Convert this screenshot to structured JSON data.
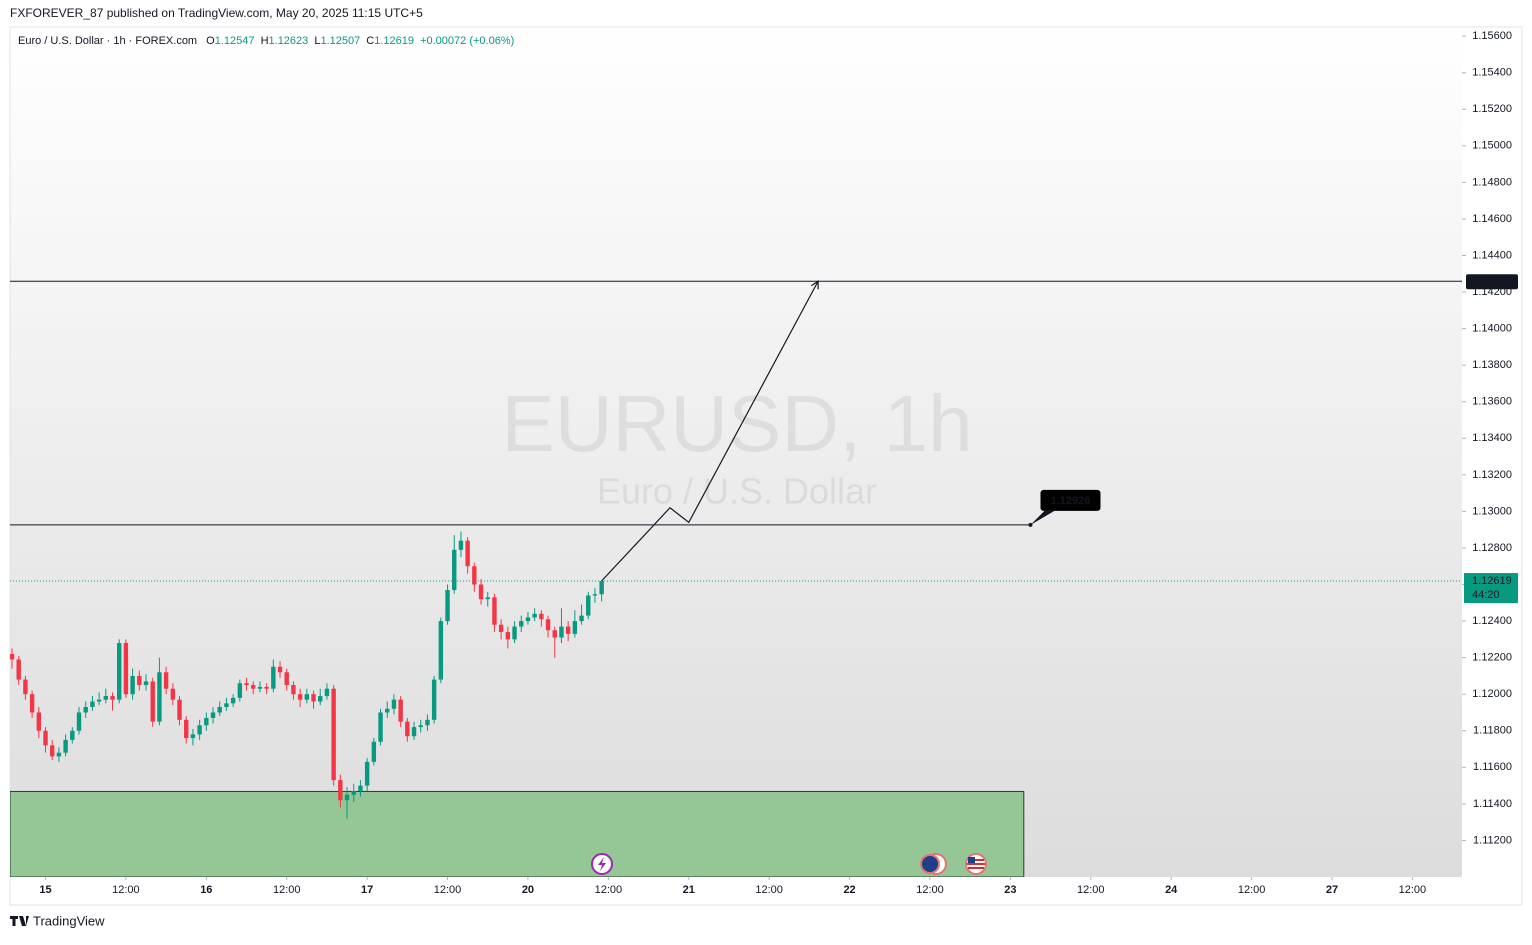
{
  "header": "FXFOREVER_87 published on TradingView.com, May 20, 2025 11:15 UTC+5",
  "footer": "TradingView",
  "chart_data": {
    "type": "candlestick",
    "title": "Euro / U.S. Dollar · 1h · FOREX.com",
    "legend": {
      "open_label": "O",
      "open": 1.12547,
      "high_label": "H",
      "high": 1.12623,
      "low_label": "L",
      "low": 1.12507,
      "close_label": "C",
      "close": 1.12619,
      "change": "+0.00072 (+0.06%)"
    },
    "watermark": "EURUSD, 1h",
    "watermark_sub": "Euro / U.S. Dollar",
    "up_color": "#089981",
    "down_color": "#f23645",
    "ohlc": [
      [
        1.1222,
        1.1225,
        1.1214,
        1.1219
      ],
      [
        1.1219,
        1.1221,
        1.1205,
        1.1208
      ],
      [
        1.1208,
        1.121,
        1.1197,
        1.12
      ],
      [
        1.12,
        1.1202,
        1.1187,
        1.119
      ],
      [
        1.119,
        1.1193,
        1.1176,
        1.118
      ],
      [
        1.118,
        1.1182,
        1.1168,
        1.1172
      ],
      [
        1.1172,
        1.1175,
        1.1164,
        1.1166
      ],
      [
        1.1166,
        1.1171,
        1.1163,
        1.1168
      ],
      [
        1.1168,
        1.1178,
        1.1166,
        1.1175
      ],
      [
        1.1175,
        1.1182,
        1.1173,
        1.118
      ],
      [
        1.118,
        1.1193,
        1.1178,
        1.119
      ],
      [
        1.119,
        1.1196,
        1.1187,
        1.1193
      ],
      [
        1.1193,
        1.1199,
        1.1191,
        1.1196
      ],
      [
        1.1196,
        1.1201,
        1.1194,
        1.1197
      ],
      [
        1.1197,
        1.1203,
        1.1195,
        1.1199
      ],
      [
        1.1199,
        1.1201,
        1.1191,
        1.1197
      ],
      [
        1.1197,
        1.123,
        1.1195,
        1.1228
      ],
      [
        1.1228,
        1.123,
        1.1198,
        1.12
      ],
      [
        1.12,
        1.1214,
        1.1197,
        1.121
      ],
      [
        1.121,
        1.1213,
        1.1202,
        1.1205
      ],
      [
        1.1205,
        1.1211,
        1.1202,
        1.1207
      ],
      [
        1.1207,
        1.1209,
        1.1182,
        1.1185
      ],
      [
        1.1185,
        1.122,
        1.1183,
        1.1212
      ],
      [
        1.1212,
        1.1215,
        1.12,
        1.1203
      ],
      [
        1.1203,
        1.1206,
        1.1194,
        1.1197
      ],
      [
        1.1197,
        1.1199,
        1.1183,
        1.1186
      ],
      [
        1.1186,
        1.1188,
        1.1173,
        1.1176
      ],
      [
        1.1176,
        1.1181,
        1.1172,
        1.1178
      ],
      [
        1.1178,
        1.1186,
        1.1175,
        1.1183
      ],
      [
        1.1183,
        1.119,
        1.118,
        1.1187
      ],
      [
        1.1187,
        1.1193,
        1.1184,
        1.119
      ],
      [
        1.119,
        1.1196,
        1.1188,
        1.1193
      ],
      [
        1.1193,
        1.1198,
        1.1191,
        1.1195
      ],
      [
        1.1195,
        1.12,
        1.1193,
        1.1198
      ],
      [
        1.1198,
        1.1208,
        1.1196,
        1.1206
      ],
      [
        1.1206,
        1.1209,
        1.1202,
        1.1205
      ],
      [
        1.1205,
        1.1207,
        1.12,
        1.1203
      ],
      [
        1.1203,
        1.1207,
        1.1201,
        1.1204
      ],
      [
        1.1204,
        1.1206,
        1.12,
        1.1203
      ],
      [
        1.1203,
        1.1219,
        1.1201,
        1.1215
      ],
      [
        1.1215,
        1.1218,
        1.1209,
        1.1212
      ],
      [
        1.1212,
        1.1214,
        1.1202,
        1.1205
      ],
      [
        1.1205,
        1.1207,
        1.1197,
        1.12
      ],
      [
        1.12,
        1.1203,
        1.1193,
        1.1197
      ],
      [
        1.1197,
        1.1203,
        1.1195,
        1.12
      ],
      [
        1.12,
        1.1202,
        1.1192,
        1.1196
      ],
      [
        1.1196,
        1.1203,
        1.1194,
        1.1199
      ],
      [
        1.1199,
        1.1206,
        1.1197,
        1.1203
      ],
      [
        1.1203,
        1.1205,
        1.115,
        1.1153
      ],
      [
        1.1153,
        1.1156,
        1.1138,
        1.1142
      ],
      [
        1.1142,
        1.1149,
        1.1132,
        1.1145
      ],
      [
        1.1145,
        1.1151,
        1.1141,
        1.1147
      ],
      [
        1.1147,
        1.1153,
        1.1144,
        1.115
      ],
      [
        1.115,
        1.1165,
        1.1147,
        1.1163
      ],
      [
        1.1163,
        1.1176,
        1.1161,
        1.1174
      ],
      [
        1.1174,
        1.1192,
        1.1172,
        1.119
      ],
      [
        1.119,
        1.1196,
        1.1187,
        1.1192
      ],
      [
        1.1192,
        1.12,
        1.1189,
        1.1197
      ],
      [
        1.1197,
        1.1199,
        1.1182,
        1.1185
      ],
      [
        1.1185,
        1.1187,
        1.1174,
        1.1177
      ],
      [
        1.1177,
        1.1185,
        1.1175,
        1.1182
      ],
      [
        1.1182,
        1.1186,
        1.1179,
        1.1183
      ],
      [
        1.1183,
        1.1189,
        1.118,
        1.1186
      ],
      [
        1.1186,
        1.121,
        1.1184,
        1.1208
      ],
      [
        1.1208,
        1.1242,
        1.1206,
        1.124
      ],
      [
        1.124,
        1.126,
        1.1238,
        1.1257
      ],
      [
        1.1257,
        1.1287,
        1.1255,
        1.1279
      ],
      [
        1.1279,
        1.1289,
        1.1275,
        1.1284
      ],
      [
        1.1284,
        1.1286,
        1.1266,
        1.127
      ],
      [
        1.127,
        1.1272,
        1.1256,
        1.126
      ],
      [
        1.126,
        1.1263,
        1.1249,
        1.1252
      ],
      [
        1.1252,
        1.1256,
        1.1248,
        1.1253
      ],
      [
        1.1253,
        1.1255,
        1.1234,
        1.1238
      ],
      [
        1.1238,
        1.1241,
        1.123,
        1.1234
      ],
      [
        1.1234,
        1.1237,
        1.1225,
        1.123
      ],
      [
        1.123,
        1.124,
        1.1228,
        1.1237
      ],
      [
        1.1237,
        1.1243,
        1.1234,
        1.124
      ],
      [
        1.124,
        1.1245,
        1.1238,
        1.1242
      ],
      [
        1.1242,
        1.1247,
        1.124,
        1.1244
      ],
      [
        1.1244,
        1.1246,
        1.1237,
        1.1241
      ],
      [
        1.1241,
        1.1243,
        1.1231,
        1.1235
      ],
      [
        1.1235,
        1.1237,
        1.122,
        1.1231
      ],
      [
        1.1231,
        1.1247,
        1.1228,
        1.1237
      ],
      [
        1.1237,
        1.124,
        1.1229,
        1.1233
      ],
      [
        1.1233,
        1.1246,
        1.1231,
        1.124
      ],
      [
        1.124,
        1.1249,
        1.1238,
        1.1243
      ],
      [
        1.1243,
        1.1256,
        1.1241,
        1.1254
      ],
      [
        1.1254,
        1.1258,
        1.125,
        1.12547
      ],
      [
        1.12547,
        1.12623,
        1.12507,
        1.12619
      ]
    ],
    "xlim": [
      -0.3,
      216.4
    ],
    "xticks": [
      {
        "value": 5,
        "label": "15"
      },
      {
        "value": 17,
        "label": "12:00"
      },
      {
        "value": 29,
        "label": "16"
      },
      {
        "value": 41,
        "label": "12:00"
      },
      {
        "value": 53,
        "label": "17"
      },
      {
        "value": 65,
        "label": "12:00"
      },
      {
        "value": 77,
        "label": "20"
      },
      {
        "value": 89,
        "label": "12:00"
      },
      {
        "value": 101,
        "label": "21"
      },
      {
        "value": 113,
        "label": "12:00"
      },
      {
        "value": 125,
        "label": "22"
      },
      {
        "value": 137,
        "label": "12:00"
      },
      {
        "value": 149,
        "label": "23"
      },
      {
        "value": 161,
        "label": "12:00"
      },
      {
        "value": 173,
        "label": "24"
      },
      {
        "value": 185,
        "label": "12:00"
      },
      {
        "value": 197,
        "label": "27"
      },
      {
        "value": 209,
        "label": "12:00"
      }
    ],
    "ylim": [
      1.11,
      1.1565
    ],
    "yticks": [
      {
        "value": 1.112,
        "label": "1.11200"
      },
      {
        "value": 1.114,
        "label": "1.11400"
      },
      {
        "value": 1.116,
        "label": "1.11600"
      },
      {
        "value": 1.118,
        "label": "1.11800"
      },
      {
        "value": 1.12,
        "label": "1.12000"
      },
      {
        "value": 1.122,
        "label": "1.12200"
      },
      {
        "value": 1.124,
        "label": "1.12400"
      },
      {
        "value": 1.126,
        "label": "1.12600"
      },
      {
        "value": 1.128,
        "label": "1.12800"
      },
      {
        "value": 1.13,
        "label": "1.13000"
      },
      {
        "value": 1.132,
        "label": "1.13200"
      },
      {
        "value": 1.134,
        "label": "1.13400"
      },
      {
        "value": 1.136,
        "label": "1.13600"
      },
      {
        "value": 1.138,
        "label": "1.13800"
      },
      {
        "value": 1.14,
        "label": "1.14000"
      },
      {
        "value": 1.142,
        "label": "1.14200"
      },
      {
        "value": 1.144,
        "label": "1.14400"
      },
      {
        "value": 1.146,
        "label": "1.14600"
      },
      {
        "value": 1.148,
        "label": "1.14800"
      },
      {
        "value": 1.15,
        "label": "1.15000"
      },
      {
        "value": 1.152,
        "label": "1.15200"
      },
      {
        "value": 1.154,
        "label": "1.15400"
      },
      {
        "value": 1.156,
        "label": "1.15600"
      }
    ],
    "levels": [
      {
        "value": 1.14259
      },
      {
        "value": 1.12926,
        "x_end": 152
      }
    ],
    "last_price": {
      "value": 1.12619,
      "countdown": "44:20"
    },
    "zone": {
      "top": 1.11468,
      "bottom": 1.11,
      "x_end": 151,
      "color": "#94c795"
    },
    "projection": {
      "x": [
        88,
        98.2,
        101,
        120.3
      ],
      "y": [
        1.1262,
        1.1302,
        1.1294,
        1.14259
      ]
    }
  }
}
